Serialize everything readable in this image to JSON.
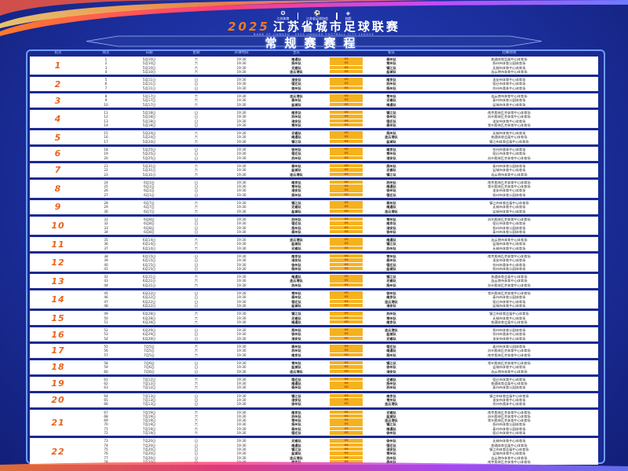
{
  "header": {
    "logos": [
      "江苏体育",
      "江苏省足球协会",
      "苏超"
    ],
    "year": "2025",
    "title": "江苏省城市足球联赛",
    "subtitle": "BANK OF JIANGSU · 2025 JIANGSU FOOTBALL CITY LEAGUE",
    "banner": "常规赛赛程"
  },
  "columns": [
    "轮次",
    "场次",
    "日期",
    "星期",
    "开球时间",
    "主队",
    "",
    "客队",
    "比赛场地"
  ],
  "vs_label": "VS",
  "colors": {
    "background": "#1c2f9e",
    "accent": "#e8641c",
    "vs": "#f5b21f",
    "frame": "#6f9bff"
  },
  "venues": {
    "南京队": "南京奥林匹克体育中心体育场",
    "苏州队": "苏州奥林匹克体育中心体育场",
    "无锡队": "无锡市体育中心体育场",
    "常州队": "常州奥林匹克体育中心体育场",
    "镇江队": "镇江市体育会展中心体育场",
    "南通队": "南通体育会展中心体育场",
    "扬州队": "扬州市体育公园体育场",
    "泰州队": "泰州市体育公园体育场",
    "盐城队": "盐城市体育中心体育场",
    "淮安队": "淮安市体育中心体育场",
    "连云港队": "连云港市体育中心体育场",
    "徐州队": "徐州市奥体中心体育场",
    "宿迁队": "宿迁市体育中心体育场"
  },
  "rounds": [
    {
      "round": "1",
      "date": "5月10日",
      "week": "六",
      "time": "19:30",
      "matches": [
        [
          "1",
          "南通队",
          "泰州队"
        ],
        [
          "2",
          "扬州队",
          "常州队"
        ],
        [
          "3",
          "无锡队",
          "镇江队"
        ],
        [
          "4",
          "连云港队",
          "盐城队"
        ]
      ]
    },
    {
      "round": "2",
      "date": "5月11日",
      "week": "日",
      "time": "19:30",
      "matches": [
        [
          "5",
          "淮安队",
          "南京队"
        ],
        [
          "6",
          "宿迁队",
          "苏州队"
        ],
        [
          "7",
          "徐州队",
          "扬州队"
        ]
      ]
    },
    {
      "round": "3",
      "date": "5月17日",
      "week": "六",
      "time": "19:30",
      "matches": [
        [
          "8",
          "连云港队",
          "常州队"
        ],
        [
          "9",
          "泰州队",
          "无锡队"
        ],
        [
          "10",
          "盐城队",
          "南通队"
        ]
      ]
    },
    {
      "round": "4",
      "date": "5月18日",
      "week": "日",
      "time": "19:30",
      "matches": [
        [
          "11",
          "南京队",
          "镇江队"
        ],
        [
          "12",
          "苏州队",
          "徐州队"
        ],
        [
          "13",
          "淮安队",
          "宿迁队"
        ],
        [
          "14",
          "常州队",
          "泰州队"
        ]
      ]
    },
    {
      "round": "5",
      "date": "5月24日",
      "week": "六",
      "time": "19:30",
      "matches": [
        [
          "15",
          "无锡队",
          "扬州队"
        ],
        [
          "16",
          "南通队",
          "连云港队"
        ],
        [
          "17",
          "镇江队",
          "盐城队"
        ]
      ]
    },
    {
      "round": "6",
      "date": "5月25日",
      "week": "日",
      "time": "19:30",
      "matches": [
        [
          "18",
          "徐州队",
          "南京队"
        ],
        [
          "19",
          "宿迁队",
          "常州队"
        ],
        [
          "20",
          "苏州队",
          "淮安队"
        ]
      ]
    },
    {
      "round": "7",
      "date": "5月31日",
      "week": "六",
      "time": "19:30",
      "matches": [
        [
          "21",
          "泰州队",
          "扬州队"
        ],
        [
          "22",
          "盐城队",
          "无锡队"
        ],
        [
          "23",
          "连云港队",
          "镇江队"
        ]
      ]
    },
    {
      "round": "8",
      "date": "6月1日",
      "week": "日",
      "time": "19:30",
      "matches": [
        [
          "24",
          "南京队",
          "苏州队"
        ],
        [
          "25",
          "常州队",
          "南通队"
        ],
        [
          "26",
          "淮安队",
          "徐州队"
        ],
        [
          "27",
          "扬州队",
          "宿迁队"
        ]
      ]
    },
    {
      "round": "9",
      "date": "6月7日",
      "week": "六",
      "time": "19:30",
      "matches": [
        [
          "28",
          "镇江队",
          "泰州队"
        ],
        [
          "29",
          "无锡队",
          "南通队"
        ],
        [
          "30",
          "盐城队",
          "连云港队"
        ]
      ]
    },
    {
      "round": "10",
      "date": "6月8日",
      "week": "日",
      "time": "19:30",
      "matches": [
        [
          "31",
          "苏州队",
          "常州队"
        ],
        [
          "32",
          "宿迁队",
          "南京队"
        ],
        [
          "33",
          "扬州队",
          "淮安队"
        ],
        [
          "34",
          "泰州队",
          "徐州队"
        ]
      ]
    },
    {
      "round": "11",
      "date": "6月14日",
      "week": "六",
      "time": "19:30",
      "matches": [
        [
          "35",
          "连云港队",
          "南通队"
        ],
        [
          "36",
          "盐城队",
          "镇江队"
        ],
        [
          "37",
          "无锡队",
          "苏州队"
        ]
      ]
    },
    {
      "round": "12",
      "date": "6月15日",
      "week": "日",
      "time": "19:30",
      "matches": [
        [
          "38",
          "南京队",
          "常州队"
        ],
        [
          "39",
          "淮安队",
          "泰州队"
        ],
        [
          "40",
          "徐州队",
          "宿迁队"
        ],
        [
          "41",
          "扬州队",
          "盐城队"
        ]
      ]
    },
    {
      "round": "13",
      "date": "6月21日",
      "week": "六",
      "time": "19:30",
      "matches": [
        [
          "42",
          "南通队",
          "镇江队"
        ],
        [
          "43",
          "连云港队",
          "无锡队"
        ],
        [
          "44",
          "苏州队",
          "扬州队"
        ]
      ]
    },
    {
      "round": "14",
      "date": "6月22日",
      "week": "日",
      "time": "19:30",
      "matches": [
        [
          "45",
          "常州队",
          "徐州队"
        ],
        [
          "46",
          "泰州队",
          "南京队"
        ],
        [
          "47",
          "宿迁队",
          "连云港队"
        ],
        [
          "48",
          "盐城队",
          "淮安队"
        ]
      ]
    },
    {
      "round": "15",
      "date": "6月28日",
      "week": "六",
      "time": "19:30",
      "matches": [
        [
          "49",
          "镇江队",
          "苏州队"
        ],
        [
          "50",
          "无锡队",
          "常州队"
        ],
        [
          "51",
          "南通队",
          "南京队"
        ]
      ]
    },
    {
      "round": "16",
      "date": "6月29日",
      "week": "日",
      "time": "19:30",
      "matches": [
        [
          "52",
          "扬州队",
          "连云港队"
        ],
        [
          "53",
          "徐州队",
          "盐城队"
        ],
        [
          "54",
          "淮安队",
          "无锡队"
        ]
      ]
    },
    {
      "round": "17",
      "date": "7月5日",
      "week": "六",
      "time": "19:30",
      "matches": [
        [
          "55",
          "泰州队",
          "宿迁队"
        ],
        [
          "56",
          "苏州队",
          "南通队"
        ],
        [
          "57",
          "南京队",
          "扬州队"
        ]
      ]
    },
    {
      "round": "18",
      "date": "7月6日",
      "week": "日",
      "time": "19:30",
      "matches": [
        [
          "58",
          "常州队",
          "镇江队"
        ],
        [
          "59",
          "盐城队",
          "徐州队"
        ],
        [
          "60",
          "连云港队",
          "淮安队"
        ]
      ]
    },
    {
      "round": "19",
      "date": "7月12日",
      "week": "六",
      "time": "19:30",
      "matches": [
        [
          "61",
          "宿迁队",
          "无锡队"
        ],
        [
          "62",
          "南通队",
          "扬州队"
        ],
        [
          "63",
          "泰州队",
          "苏州队"
        ]
      ]
    },
    {
      "round": "20",
      "date": "7月13日",
      "week": "日",
      "time": "19:30",
      "matches": [
        [
          "64",
          "镇江队",
          "南京队"
        ],
        [
          "65",
          "淮安队",
          "常州队"
        ],
        [
          "66",
          "徐州队",
          "连云港队"
        ]
      ]
    },
    {
      "round": "21",
      "date": "7月19日",
      "week": "六",
      "time": "19:30",
      "matches": [
        [
          "67",
          "南京队",
          "无锡队"
        ],
        [
          "68",
          "苏州队",
          "盐城队"
        ],
        [
          "69",
          "常州队",
          "连云港队"
        ],
        [
          "70",
          "扬州队",
          "镇江队"
        ],
        [
          "71",
          "泰州队",
          "南通队"
        ],
        [
          "72",
          "宿迁队",
          "徐州队"
        ]
      ]
    },
    {
      "round": "22",
      "date": "7月20日",
      "week": "日",
      "time": "19:30",
      "matches": [
        [
          "73",
          "无锡队",
          "徐州队"
        ],
        [
          "74",
          "南通队",
          "宿迁队"
        ],
        [
          "75",
          "镇江队",
          "淮安队"
        ],
        [
          "76",
          "盐城队",
          "常州队"
        ],
        [
          "77",
          "连云港队",
          "苏州队"
        ],
        [
          "78",
          "南京队",
          "泰州队"
        ]
      ]
    }
  ]
}
